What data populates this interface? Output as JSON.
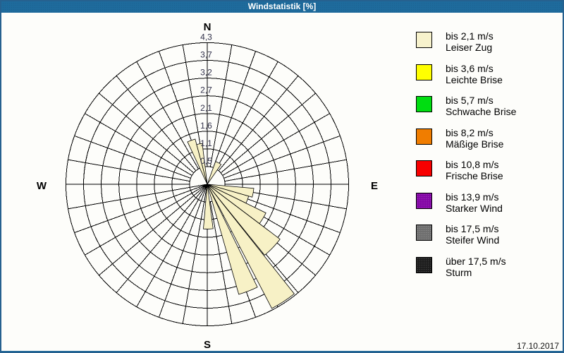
{
  "window": {
    "title": "Windstatistik [%]",
    "date": "17.10.2017"
  },
  "compass": {
    "north": "N",
    "east": "E",
    "south": "S",
    "west": "W"
  },
  "legend": {
    "items": [
      {
        "speed": "bis 2,1 m/s",
        "name": "Leiser Zug",
        "color": "#F7F2CC",
        "textured": false
      },
      {
        "speed": "bis 3,6 m/s",
        "name": "Leichte Brise",
        "color": "#FFFF00",
        "textured": false
      },
      {
        "speed": "bis 5,7 m/s",
        "name": "Schwache Brise",
        "color": "#00DD11",
        "textured": false
      },
      {
        "speed": "bis 8,2 m/s",
        "name": "Mäßige Brise",
        "color": "#F07D00",
        "textured": false
      },
      {
        "speed": "bis 10,8 m/s",
        "name": "Frische Brise",
        "color": "#F80000",
        "textured": false
      },
      {
        "speed": "bis 13,9 m/s",
        "name": "Starker Wind",
        "color": "#8406A6",
        "textured": true
      },
      {
        "speed": "bis 17,5 m/s",
        "name": "Steifer Wind",
        "color": "#6F6F6F",
        "textured": true
      },
      {
        "speed": "über 17,5 m/s",
        "name": "Sturm",
        "color": "#1C1C1C",
        "textured": true
      }
    ]
  },
  "chart_data": {
    "type": "wind_rose",
    "unit": "%",
    "title": "Windstatistik [%]",
    "max_value": 4.2667,
    "ring_labels": [
      "0,5",
      "1,1",
      "1,6",
      "2,1",
      "2,7",
      "3,2",
      "3,7",
      "4,3"
    ],
    "ring_values": [
      0.53,
      1.07,
      1.6,
      2.13,
      2.67,
      3.2,
      3.73,
      4.27
    ],
    "direction_bin_deg": 10,
    "petals": [
      {
        "from_deg": 335,
        "to_deg": 345,
        "value_pct": 1.41
      },
      {
        "from_deg": 345,
        "to_deg": 353,
        "value_pct": 1.24
      },
      {
        "from_deg": 20,
        "to_deg": 35,
        "value_pct": 0.73
      },
      {
        "from_deg": 95,
        "to_deg": 106,
        "value_pct": 1.41
      },
      {
        "from_deg": 106,
        "to_deg": 116,
        "value_pct": 1.3
      },
      {
        "from_deg": 116,
        "to_deg": 127,
        "value_pct": 1.97
      },
      {
        "from_deg": 127,
        "to_deg": 141,
        "value_pct": 2.75
      },
      {
        "from_deg": 141.5,
        "to_deg": 152.5,
        "value_pct": 4.22
      },
      {
        "from_deg": 154,
        "to_deg": 164,
        "value_pct": 3.45
      },
      {
        "from_deg": 172.5,
        "to_deg": 185,
        "value_pct": 1.35
      }
    ],
    "petal_fill": "#F7F1C6",
    "center_ray_angles_deg": [
      190,
      200,
      210,
      220,
      230,
      240,
      250,
      260
    ],
    "grid_color": "#000000",
    "ring_label_color": "#31314A"
  }
}
